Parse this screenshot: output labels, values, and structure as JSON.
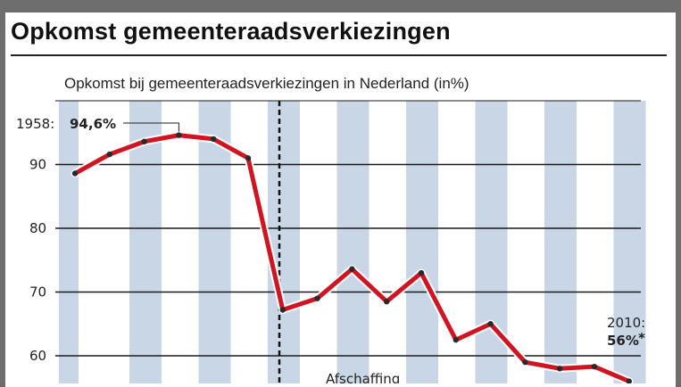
{
  "title": "Opkomst gemeenteraadsverkiezingen",
  "chart_data": {
    "type": "line",
    "subtitle": "Opkomst bij gemeenteraadsverkiezingen in Nederland (in%)",
    "y_ticks": [
      "90",
      "80",
      "70",
      "60"
    ],
    "ylim": [
      56,
      100
    ],
    "grid": true,
    "series": [
      {
        "values": [
          88.6,
          91.6,
          93.6,
          94.6,
          94.0,
          91.0,
          67.2,
          69.0,
          73.6,
          68.5,
          73.0,
          62.5,
          65.0,
          59.0,
          58.0,
          58.3,
          56.0
        ]
      }
    ],
    "annotations": {
      "first_label": "1958: ",
      "first_value": "94,6%",
      "last_label": "2010:",
      "last_value": "56%",
      "last_marker": "*",
      "divider_text": "Afschaffing"
    }
  },
  "colors": {
    "line": "#d01522",
    "stripe": "#c9d6e6",
    "background": "#ffffff"
  }
}
